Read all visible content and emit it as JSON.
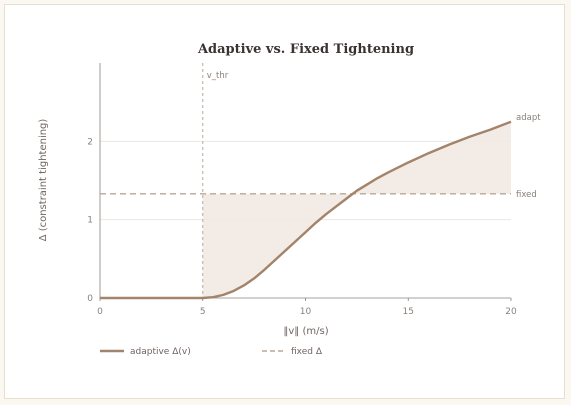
{
  "chart_data": {
    "type": "line",
    "title": "Adaptive vs. Fixed Tightening",
    "xlabel": "‖v‖ (m/s)",
    "ylabel": "Δ (constraint tightening)",
    "xlim": [
      0,
      20
    ],
    "ylim": [
      0,
      3.0
    ],
    "xticks": [
      "0",
      "5",
      "10",
      "15",
      "20"
    ],
    "yticks": [
      "0",
      "1",
      "2"
    ],
    "threshold": {
      "x": 5,
      "label": "v_thr"
    },
    "fixed_value": 1.33,
    "series": [
      {
        "name": "adaptive Δ(v)",
        "end_label": "adaptive",
        "color": "#a3836a",
        "style": "solid",
        "x": [
          0,
          5,
          5.5,
          6,
          6.5,
          7,
          7.5,
          8,
          8.5,
          9,
          9.5,
          10,
          10.5,
          11,
          11.5,
          12,
          12.5,
          13,
          13.5,
          14,
          15,
          16,
          17,
          18,
          19,
          20
        ],
        "y": [
          0,
          0,
          0.01,
          0.04,
          0.09,
          0.16,
          0.25,
          0.36,
          0.48,
          0.6,
          0.72,
          0.84,
          0.96,
          1.07,
          1.17,
          1.27,
          1.37,
          1.45,
          1.53,
          1.6,
          1.73,
          1.85,
          1.96,
          2.06,
          2.15,
          2.25
        ]
      },
      {
        "name": "fixed Δ",
        "end_label": "fixed",
        "color": "#b8a898",
        "style": "dashed",
        "x": [
          0,
          20
        ],
        "y": [
          1.33,
          1.33
        ]
      }
    ],
    "grid": true,
    "legend": "bottom-left",
    "fill_color": "#f1e9e2"
  }
}
